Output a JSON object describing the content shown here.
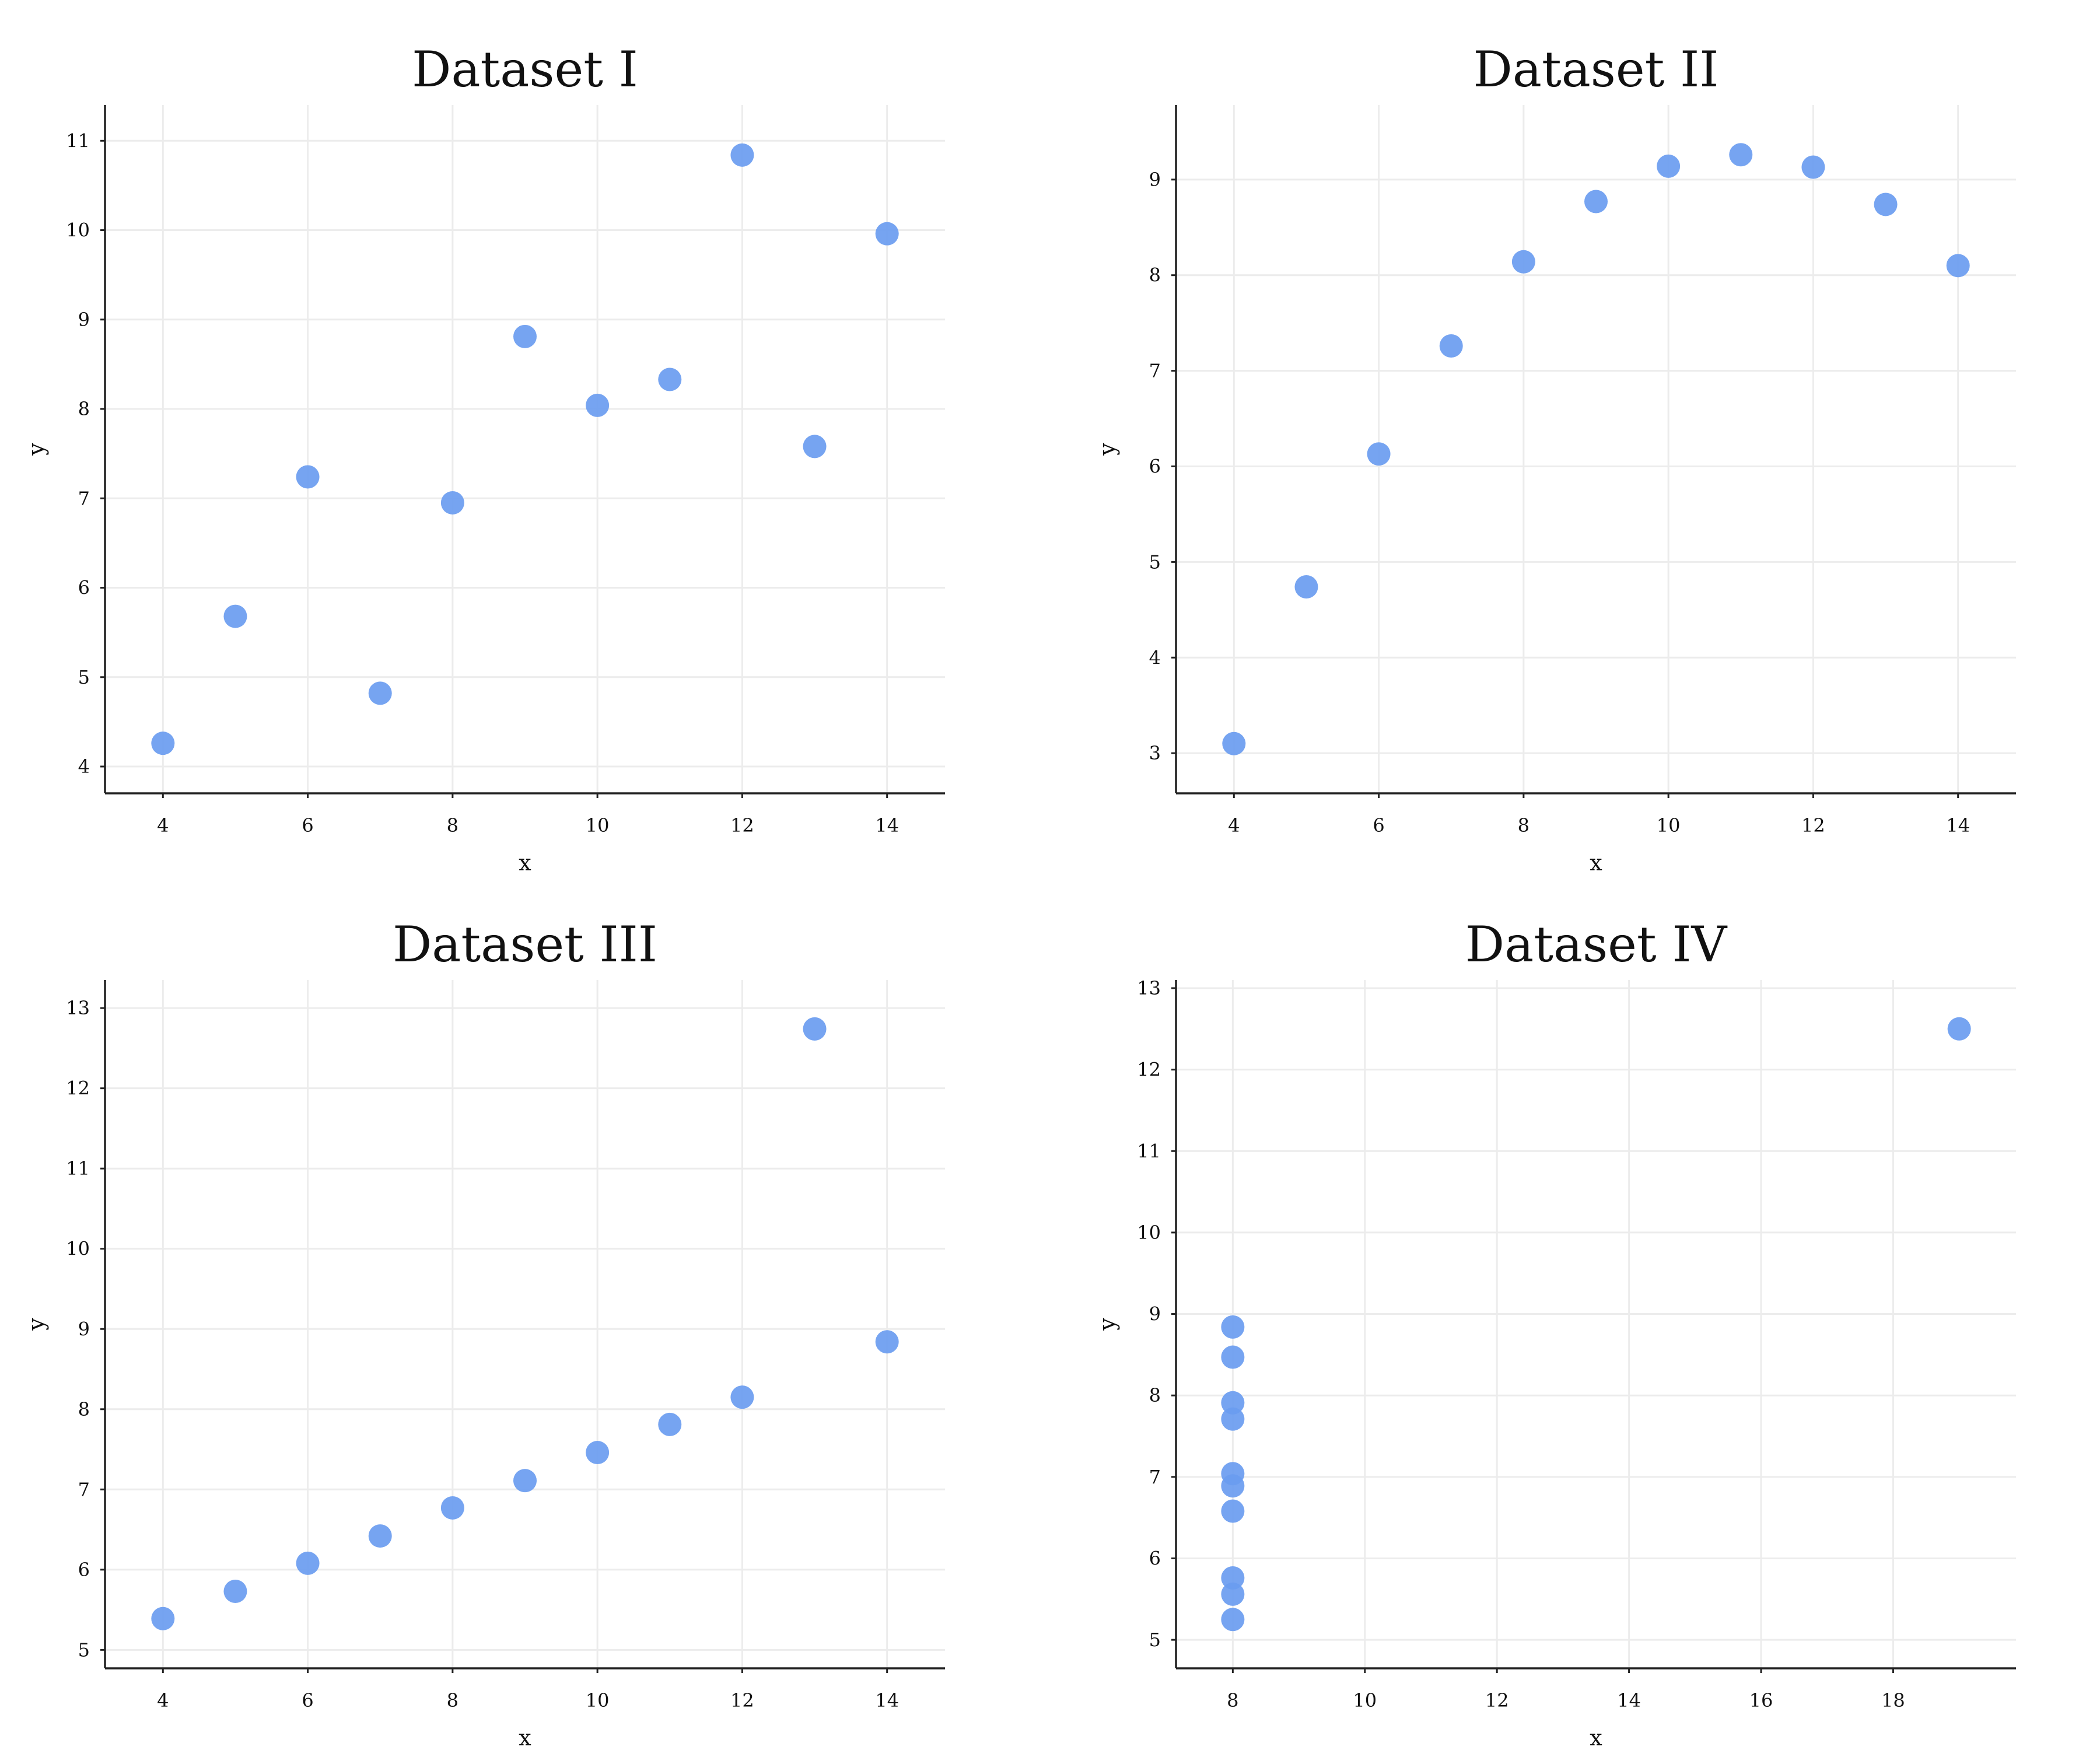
{
  "chart_data": [
    {
      "type": "scatter",
      "title": "Dataset I",
      "xlabel": "x",
      "ylabel": "y",
      "xlim": [
        3.2,
        14.8
      ],
      "ylim": [
        3.7,
        11.4
      ],
      "xticks": [
        4,
        6,
        8,
        10,
        12,
        14
      ],
      "yticks": [
        4,
        5,
        6,
        7,
        8,
        9,
        10,
        11
      ],
      "grid": true,
      "points": [
        {
          "x": 10,
          "y": 8.04
        },
        {
          "x": 8,
          "y": 6.95
        },
        {
          "x": 13,
          "y": 7.58
        },
        {
          "x": 9,
          "y": 8.81
        },
        {
          "x": 11,
          "y": 8.33
        },
        {
          "x": 14,
          "y": 9.96
        },
        {
          "x": 6,
          "y": 7.24
        },
        {
          "x": 4,
          "y": 4.26
        },
        {
          "x": 12,
          "y": 10.84
        },
        {
          "x": 7,
          "y": 4.82
        },
        {
          "x": 5,
          "y": 5.68
        }
      ]
    },
    {
      "type": "scatter",
      "title": "Dataset II",
      "xlabel": "x",
      "ylabel": "y",
      "xlim": [
        3.2,
        14.8
      ],
      "ylim": [
        2.58,
        9.78
      ],
      "xticks": [
        4,
        6,
        8,
        10,
        12,
        14
      ],
      "yticks": [
        3,
        4,
        5,
        6,
        7,
        8,
        9
      ],
      "grid": true,
      "points": [
        {
          "x": 10,
          "y": 9.14
        },
        {
          "x": 8,
          "y": 8.14
        },
        {
          "x": 13,
          "y": 8.74
        },
        {
          "x": 9,
          "y": 8.77
        },
        {
          "x": 11,
          "y": 9.26
        },
        {
          "x": 14,
          "y": 8.1
        },
        {
          "x": 6,
          "y": 6.13
        },
        {
          "x": 4,
          "y": 3.1
        },
        {
          "x": 12,
          "y": 9.13
        },
        {
          "x": 7,
          "y": 7.26
        },
        {
          "x": 5,
          "y": 4.74
        }
      ]
    },
    {
      "type": "scatter",
      "title": "Dataset III",
      "xlabel": "x",
      "ylabel": "y",
      "xlim": [
        3.2,
        14.8
      ],
      "ylim": [
        4.77,
        13.35
      ],
      "xticks": [
        4,
        6,
        8,
        10,
        12,
        14
      ],
      "yticks": [
        5,
        6,
        7,
        8,
        9,
        10,
        11,
        12,
        13
      ],
      "grid": true,
      "points": [
        {
          "x": 10,
          "y": 7.46
        },
        {
          "x": 8,
          "y": 6.77
        },
        {
          "x": 13,
          "y": 12.74
        },
        {
          "x": 9,
          "y": 7.11
        },
        {
          "x": 11,
          "y": 7.81
        },
        {
          "x": 14,
          "y": 8.84
        },
        {
          "x": 6,
          "y": 6.08
        },
        {
          "x": 4,
          "y": 5.39
        },
        {
          "x": 12,
          "y": 8.15
        },
        {
          "x": 7,
          "y": 6.42
        },
        {
          "x": 5,
          "y": 5.73
        }
      ]
    },
    {
      "type": "scatter",
      "title": "Dataset IV",
      "xlabel": "x",
      "ylabel": "y",
      "xlim": [
        7.14,
        19.86
      ],
      "ylim": [
        4.65,
        13.1
      ],
      "xticks": [
        8,
        10,
        12,
        14,
        16,
        18
      ],
      "yticks": [
        5,
        6,
        7,
        8,
        9,
        10,
        11,
        12,
        13
      ],
      "grid": true,
      "points": [
        {
          "x": 8,
          "y": 6.58
        },
        {
          "x": 8,
          "y": 5.76
        },
        {
          "x": 8,
          "y": 7.71
        },
        {
          "x": 8,
          "y": 8.84
        },
        {
          "x": 8,
          "y": 8.47
        },
        {
          "x": 8,
          "y": 7.04
        },
        {
          "x": 8,
          "y": 5.25
        },
        {
          "x": 19,
          "y": 12.5
        },
        {
          "x": 8,
          "y": 5.56
        },
        {
          "x": 8,
          "y": 7.91
        },
        {
          "x": 8,
          "y": 6.89
        }
      ]
    }
  ],
  "style": {
    "point_color": "#6a9cf0",
    "grid_color": "#ececec",
    "axis_color": "#222222",
    "text_color": "#111111"
  }
}
